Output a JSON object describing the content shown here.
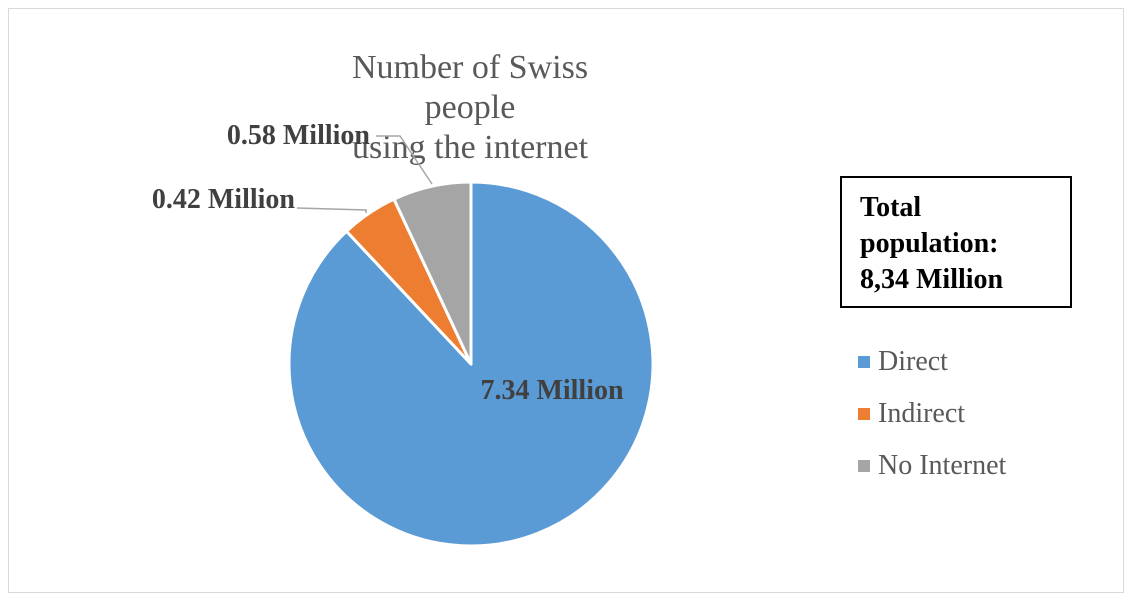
{
  "chart_data": {
    "type": "pie",
    "title": "Number of Swiss people using the internet",
    "title_lines": [
      "Number of Swiss people",
      "using the internet"
    ],
    "categories": [
      "Direct",
      "Indirect",
      "No Internet"
    ],
    "values": [
      7.34,
      0.42,
      0.58
    ],
    "data_labels": [
      "7.34 Million",
      "0.42 Million",
      "0.58 Million"
    ],
    "colors": [
      "#5b9bd5",
      "#ed7d31",
      "#a5a5a5"
    ],
    "start_angle": "12 o'clock",
    "direction": "clockwise",
    "legend_placement": "right"
  },
  "info_box": {
    "lines": [
      "Total",
      "population:",
      "8,34 Million"
    ]
  }
}
